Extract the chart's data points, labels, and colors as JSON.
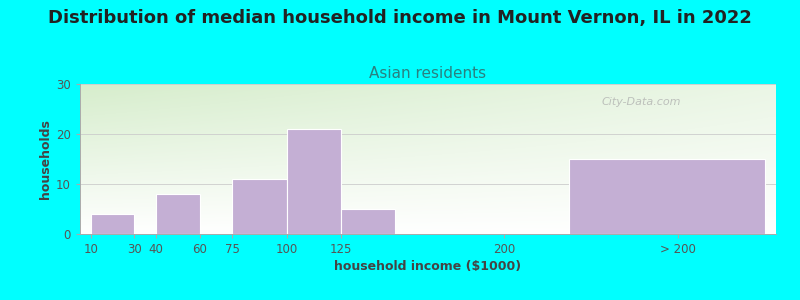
{
  "title": "Distribution of median household income in Mount Vernon, IL in 2022",
  "subtitle": "Asian residents",
  "xlabel": "household income ($1000)",
  "ylabel": "households",
  "background_color": "#00FFFF",
  "plot_bg_color_top_left": "#d8eecb",
  "plot_bg_color_top_right": "#f0f4e8",
  "plot_bg_color_bottom": "#ffffff",
  "bar_color": "#c4afd4",
  "watermark": "City-Data.com",
  "ylim": [
    0,
    30
  ],
  "yticks": [
    0,
    10,
    20,
    30
  ],
  "bars": [
    {
      "x_left": 10,
      "x_right": 30,
      "height": 4
    },
    {
      "x_left": 40,
      "x_right": 60,
      "height": 8
    },
    {
      "x_left": 75,
      "x_right": 100,
      "height": 11
    },
    {
      "x_left": 100,
      "x_right": 125,
      "height": 21
    },
    {
      "x_left": 125,
      "x_right": 150,
      "height": 5
    },
    {
      "x_left": 230,
      "x_right": 320,
      "height": 15
    }
  ],
  "xtick_positions": [
    10,
    30,
    40,
    60,
    75,
    100,
    125,
    200,
    280
  ],
  "xtick_labels": [
    "10",
    "30",
    "40",
    "60",
    "75",
    "100",
    "125",
    "200",
    "> 200"
  ],
  "xlim": [
    5,
    325
  ],
  "title_fontsize": 13,
  "subtitle_fontsize": 11,
  "axis_label_fontsize": 9,
  "tick_fontsize": 8.5
}
